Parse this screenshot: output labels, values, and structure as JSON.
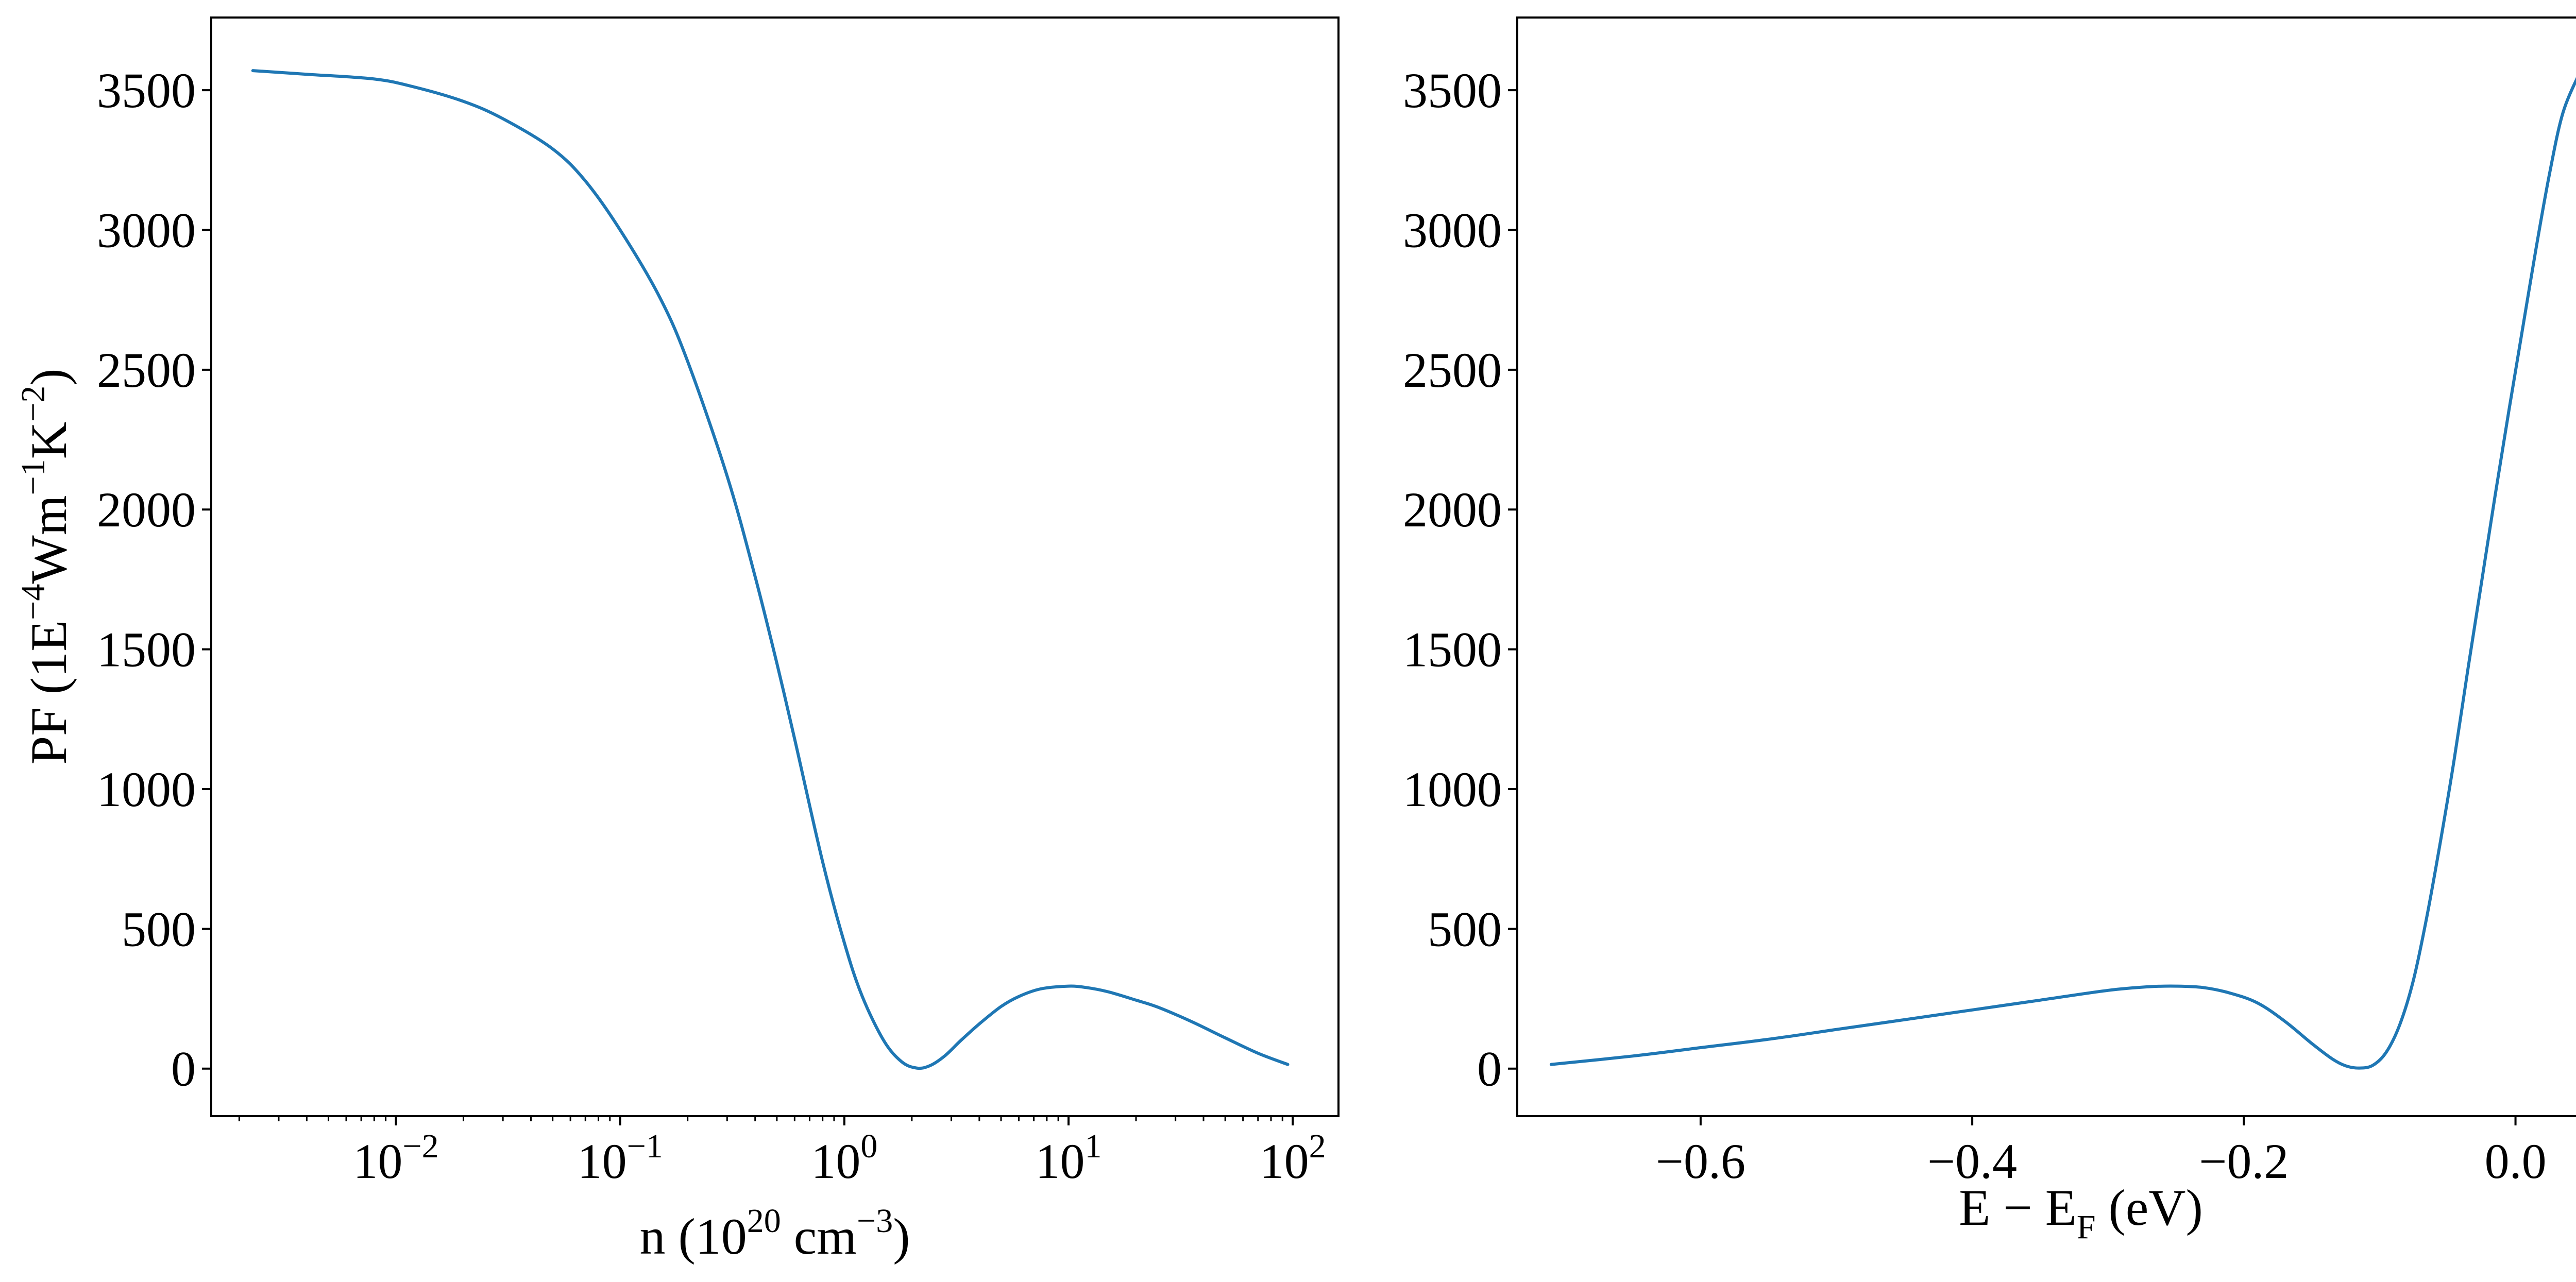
{
  "colors": {
    "series": "#1f77b4",
    "axes": "#000000",
    "background": "#ffffff"
  },
  "chart_data": [
    {
      "type": "line",
      "xscale": "log",
      "xlim": [
        0.0015,
        160
      ],
      "ylim": [
        -170,
        3760
      ],
      "grid": false,
      "legend": "none",
      "xlabel": {
        "prefix": "n (10",
        "sup1": "20",
        "mid": " cm",
        "sup2": "−3",
        "suffix": ")"
      },
      "ylabel": {
        "prefix": "PF (1E",
        "sup1": "−4",
        "mid1": "Wm",
        "sup2": "−1",
        "mid2": "K",
        "sup3": "−2",
        "suffix": ")"
      },
      "xticks": [
        {
          "value": 0.01,
          "base": "10",
          "exp": "−2"
        },
        {
          "value": 0.1,
          "base": "10",
          "exp": "−1"
        },
        {
          "value": 1,
          "base": "10",
          "exp": "0"
        },
        {
          "value": 10,
          "base": "10",
          "exp": "1"
        },
        {
          "value": 100,
          "base": "10",
          "exp": "2"
        }
      ],
      "yticks": [
        "0",
        "500",
        "1000",
        "1500",
        "2000",
        "2500",
        "3000",
        "3500"
      ],
      "series": [
        {
          "x": [
            0.0023,
            0.004,
            0.008,
            0.012,
            0.02,
            0.03,
            0.05,
            0.07,
            0.1,
            0.15,
            0.2,
            0.3,
            0.4,
            0.5,
            0.6,
            0.8,
            1.0,
            1.2,
            1.5,
            1.8,
            2.1,
            2.4,
            2.8,
            3.3,
            4.0,
            5.0,
            6.0,
            7.5,
            10,
            12,
            15,
            20,
            25,
            35,
            50,
            70,
            95
          ],
          "y": [
            3570,
            3557,
            3540,
            3512,
            3460,
            3398,
            3290,
            3175,
            3000,
            2760,
            2530,
            2120,
            1760,
            1450,
            1180,
            740,
            450,
            260,
            100,
            25,
            2,
            10,
            45,
            100,
            160,
            222,
            258,
            285,
            295,
            290,
            275,
            245,
            220,
            170,
            110,
            55,
            15
          ]
        }
      ]
    },
    {
      "type": "line",
      "xscale": "linear",
      "xlim": [
        -0.735,
        0.095
      ],
      "ylim": [
        -170,
        3760
      ],
      "grid": false,
      "legend": "none",
      "xlabel": {
        "prefix": "E − E",
        "sub": "F",
        "suffix": " (eV)"
      },
      "xticks": [
        {
          "value": -0.6,
          "label": "−0.6"
        },
        {
          "value": -0.4,
          "label": "−0.4"
        },
        {
          "value": -0.2,
          "label": "−0.2"
        },
        {
          "value": 0.0,
          "label": "0.0"
        }
      ],
      "yticks": [
        "0",
        "500",
        "1000",
        "1500",
        "2000",
        "2500",
        "3000",
        "3500"
      ],
      "series": [
        {
          "x": [
            -0.71,
            -0.65,
            -0.6,
            -0.55,
            -0.5,
            -0.45,
            -0.4,
            -0.35,
            -0.3,
            -0.27,
            -0.25,
            -0.23,
            -0.21,
            -0.19,
            -0.17,
            -0.15,
            -0.135,
            -0.125,
            -0.115,
            -0.105,
            -0.095,
            -0.085,
            -0.075,
            -0.065,
            -0.055,
            -0.045,
            -0.035,
            -0.025,
            -0.015,
            -0.005,
            0.005,
            0.015,
            0.025,
            0.035,
            0.048
          ],
          "y": [
            15,
            45,
            75,
            105,
            140,
            175,
            210,
            245,
            280,
            293,
            295,
            290,
            270,
            235,
            170,
            90,
            35,
            10,
            2,
            12,
            60,
            160,
            320,
            550,
            820,
            1110,
            1430,
            1740,
            2050,
            2350,
            2640,
            2930,
            3200,
            3420,
            3570
          ]
        }
      ]
    }
  ]
}
